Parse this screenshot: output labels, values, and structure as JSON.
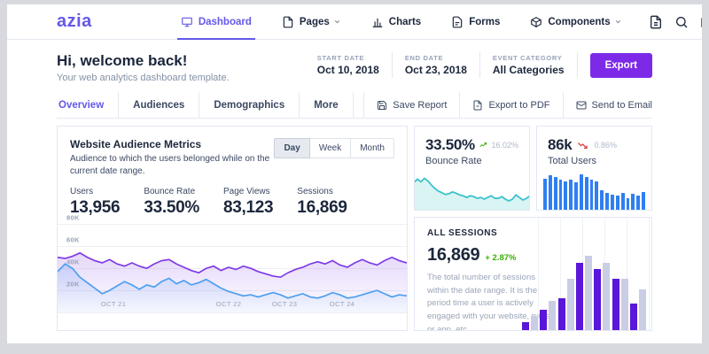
{
  "brand": "azia",
  "navbar": {
    "items": [
      {
        "label": "Dashboard",
        "icon": "dashboard-icon",
        "active": true
      },
      {
        "label": "Pages",
        "icon": "file-icon",
        "chevron": true
      },
      {
        "label": "Charts",
        "icon": "bar-chart-icon"
      },
      {
        "label": "Forms",
        "icon": "form-icon"
      },
      {
        "label": "Components",
        "icon": "components-icon",
        "chevron": true
      }
    ],
    "right_icons": [
      "document-icon",
      "search-icon",
      "messages-icon",
      "notifications-icon",
      "avatar"
    ]
  },
  "header": {
    "title": "Hi, welcome back!",
    "subtitle": "Your web analytics dashboard template.",
    "filters": [
      {
        "label": "START DATE",
        "value": "Oct 10, 2018"
      },
      {
        "label": "END DATE",
        "value": "Oct 23, 2018"
      },
      {
        "label": "EVENT CATEGORY",
        "value": "All Categories"
      }
    ],
    "export_label": "Export"
  },
  "tabs": [
    {
      "label": "Overview",
      "active": true
    },
    {
      "label": "Audiences",
      "active": false
    },
    {
      "label": "Demographics",
      "active": false
    },
    {
      "label": "More",
      "active": false
    }
  ],
  "report_actions": [
    {
      "label": "Save Report",
      "icon": "save-icon"
    },
    {
      "label": "Export to PDF",
      "icon": "pdf-icon"
    },
    {
      "label": "Send to Email",
      "icon": "email-icon"
    }
  ],
  "metrics_card": {
    "title": "Website Audience Metrics",
    "subtitle": "Audience to which the users belonged while on the current date range.",
    "range_buttons": [
      "Day",
      "Week",
      "Month"
    ],
    "active_range": "Day",
    "stats": [
      {
        "label": "Users",
        "value": "13,956"
      },
      {
        "label": "Bounce Rate",
        "value": "33.50%"
      },
      {
        "label": "Page Views",
        "value": "83,123"
      },
      {
        "label": "Sessions",
        "value": "16,869"
      }
    ]
  },
  "bounce_card": {
    "value": "33.50%",
    "change": "16.02%",
    "direction": "up",
    "label": "Bounce Rate"
  },
  "users_card": {
    "value": "86k",
    "change": "0.86%",
    "direction": "down",
    "label": "Total Users"
  },
  "sessions_card": {
    "title": "ALL SESSIONS",
    "value": "16,869",
    "change": "+ 2.87%",
    "description": "The total number of sessions within the date range. It is the period time a user is actively engaged with your website, page or app, etc."
  },
  "colors": {
    "brand_purple": "#6358e8",
    "export_purple": "#7d2ae8",
    "chart_purple": "#7e3be6",
    "chart_blue": "#4c9ff0",
    "teal": "#3ec2cc",
    "bar_blue": "#2f7ff2",
    "bar_purple": "#5a16d9",
    "bar_lavender": "#c9cee4",
    "green": "#3bb001",
    "red": "#e0413f"
  },
  "chart_data": [
    {
      "type": "area",
      "title": "Website Audience Metrics",
      "x_labels": [
        "OCT 21",
        "OCT 22",
        "OCT 23",
        "OCT 24"
      ],
      "x_label_positions_pct": [
        16,
        49,
        65,
        81.5
      ],
      "yticks": [
        {
          "label": "80K",
          "value": 80
        },
        {
          "label": "60K",
          "value": 60
        },
        {
          "label": "40K",
          "value": 40
        },
        {
          "label": "20K",
          "value": 20
        }
      ],
      "ymax": 90,
      "grid": true,
      "legend": "none",
      "series": [
        {
          "name": "purple-series",
          "color": "#7e3be6",
          "values": [
            50,
            49,
            51,
            54,
            50,
            47,
            45,
            48,
            44,
            42,
            45,
            42,
            40,
            44,
            47,
            48,
            44,
            41,
            38,
            36,
            40,
            42,
            38,
            41,
            39,
            42,
            40,
            37,
            35,
            33,
            32,
            36,
            39,
            41,
            44,
            46,
            44,
            47,
            43,
            41,
            45,
            48,
            45,
            43,
            47,
            50,
            47,
            45
          ]
        },
        {
          "name": "blue-series",
          "color": "#4c9ff0",
          "values": [
            37,
            44,
            40,
            32,
            27,
            22,
            17,
            20,
            24,
            28,
            25,
            21,
            25,
            23,
            28,
            31,
            26,
            29,
            25,
            27,
            30,
            26,
            22,
            19,
            17,
            15,
            16,
            14,
            16,
            18,
            16,
            13,
            15,
            17,
            14,
            13,
            15,
            18,
            16,
            13,
            14,
            16,
            18,
            20,
            17,
            14,
            16,
            15
          ]
        }
      ]
    },
    {
      "type": "area",
      "title": "Bounce Rate sparkline",
      "color": "#3ec2cc",
      "ymax": 100,
      "values": [
        66,
        74,
        68,
        76,
        70,
        60,
        52,
        46,
        42,
        38,
        40,
        44,
        41,
        37,
        35,
        31,
        35,
        33,
        29,
        31,
        27,
        31,
        35,
        29,
        29,
        33,
        27,
        23,
        27,
        37,
        31,
        25,
        29,
        35
      ]
    },
    {
      "type": "bar",
      "title": "Total Users bars",
      "color": "#2f7ff2",
      "ymax": 100,
      "values": [
        62,
        70,
        66,
        60,
        57,
        61,
        55,
        72,
        66,
        61,
        57,
        40,
        34,
        30,
        28,
        34,
        24,
        32,
        28,
        35
      ]
    },
    {
      "type": "bar",
      "title": "All Sessions grouped bars",
      "ymax": 100,
      "series": [
        {
          "name": "current",
          "color": "#5a16d9",
          "values": [
            7,
            18,
            28,
            60,
            54,
            46,
            24
          ]
        },
        {
          "name": "previous",
          "color": "#c9cee4",
          "values": [
            13,
            26,
            46,
            66,
            60,
            46,
            36
          ]
        }
      ]
    }
  ]
}
